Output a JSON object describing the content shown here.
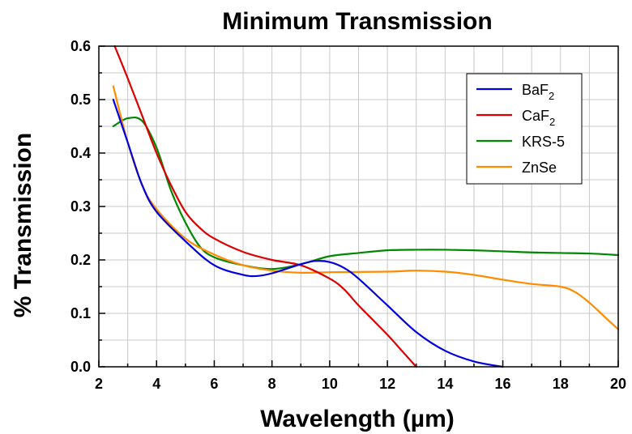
{
  "chart_data": {
    "type": "line",
    "title": "Minimum Transmission",
    "xlabel": "Wavelength (µm)",
    "ylabel": "% Transmission",
    "xlim": [
      2,
      20
    ],
    "ylim": [
      0,
      0.6
    ],
    "x_ticks": [
      2,
      4,
      6,
      8,
      10,
      12,
      14,
      16,
      18,
      20
    ],
    "y_ticks": [
      0.0,
      0.1,
      0.2,
      0.3,
      0.4,
      0.5,
      0.6
    ],
    "x_tick_labels": [
      "2",
      "4",
      "6",
      "8",
      "10",
      "12",
      "14",
      "16",
      "18",
      "20"
    ],
    "y_tick_labels": [
      "0.0",
      "0.1",
      "0.2",
      "0.3",
      "0.4",
      "0.5",
      "0.6"
    ],
    "grid": true,
    "legend_position": "top-right",
    "series": [
      {
        "name": "BaF2",
        "label_main": "BaF",
        "label_sub": "2",
        "color": "#0000dd",
        "points": [
          [
            2.5,
            0.5
          ],
          [
            3,
            0.42
          ],
          [
            3.5,
            0.34
          ],
          [
            4,
            0.29
          ],
          [
            5,
            0.235
          ],
          [
            6,
            0.19
          ],
          [
            7,
            0.172
          ],
          [
            7.5,
            0.17
          ],
          [
            8,
            0.175
          ],
          [
            9,
            0.192
          ],
          [
            9.5,
            0.198
          ],
          [
            10,
            0.196
          ],
          [
            10.5,
            0.185
          ],
          [
            11,
            0.165
          ],
          [
            12,
            0.115
          ],
          [
            13,
            0.065
          ],
          [
            14,
            0.03
          ],
          [
            15,
            0.01
          ],
          [
            16,
            0.0
          ]
        ]
      },
      {
        "name": "CaF2",
        "label_main": "CaF",
        "label_sub": "2",
        "color": "#dd0000",
        "points": [
          [
            2.55,
            0.6
          ],
          [
            3,
            0.54
          ],
          [
            3.5,
            0.47
          ],
          [
            4,
            0.4
          ],
          [
            4.5,
            0.34
          ],
          [
            5,
            0.29
          ],
          [
            5.5,
            0.26
          ],
          [
            6,
            0.24
          ],
          [
            7,
            0.215
          ],
          [
            8,
            0.2
          ],
          [
            9,
            0.19
          ],
          [
            10,
            0.165
          ],
          [
            10.5,
            0.145
          ],
          [
            11,
            0.115
          ],
          [
            12,
            0.06
          ],
          [
            12.5,
            0.03
          ],
          [
            13,
            0.0
          ]
        ]
      },
      {
        "name": "KRS-5",
        "label_main": "KRS-5",
        "label_sub": "",
        "color": "#008800",
        "points": [
          [
            2.5,
            0.45
          ],
          [
            3,
            0.465
          ],
          [
            3.5,
            0.46
          ],
          [
            4,
            0.41
          ],
          [
            4.5,
            0.33
          ],
          [
            5,
            0.27
          ],
          [
            5.5,
            0.225
          ],
          [
            6,
            0.205
          ],
          [
            7,
            0.19
          ],
          [
            8,
            0.183
          ],
          [
            9,
            0.192
          ],
          [
            10,
            0.207
          ],
          [
            11,
            0.213
          ],
          [
            12,
            0.218
          ],
          [
            13,
            0.219
          ],
          [
            14,
            0.219
          ],
          [
            15,
            0.218
          ],
          [
            16,
            0.216
          ],
          [
            17,
            0.214
          ],
          [
            18,
            0.213
          ],
          [
            19,
            0.212
          ],
          [
            20,
            0.209
          ]
        ]
      },
      {
        "name": "ZnSe",
        "label_main": "ZnSe",
        "label_sub": "",
        "color": "#ff8c00",
        "points": [
          [
            2.5,
            0.525
          ],
          [
            3,
            0.42
          ],
          [
            3.5,
            0.34
          ],
          [
            4,
            0.295
          ],
          [
            5,
            0.24
          ],
          [
            6,
            0.21
          ],
          [
            7,
            0.19
          ],
          [
            8,
            0.18
          ],
          [
            9,
            0.176
          ],
          [
            10,
            0.177
          ],
          [
            12,
            0.178
          ],
          [
            13,
            0.18
          ],
          [
            14,
            0.178
          ],
          [
            15,
            0.172
          ],
          [
            16,
            0.163
          ],
          [
            17,
            0.155
          ],
          [
            18,
            0.15
          ],
          [
            18.5,
            0.14
          ],
          [
            19,
            0.12
          ],
          [
            19.5,
            0.095
          ],
          [
            20,
            0.07
          ]
        ]
      }
    ]
  }
}
